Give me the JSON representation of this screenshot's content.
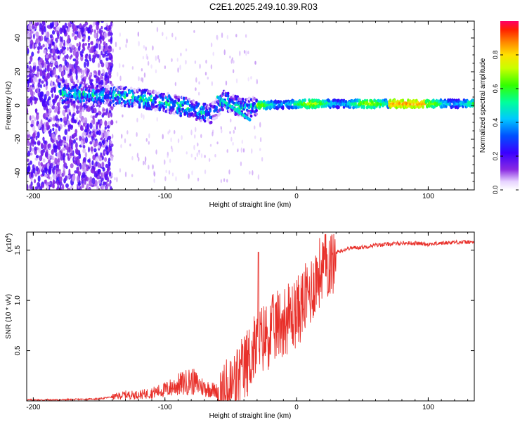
{
  "title": "C2E1.2025.249.10.39.R03",
  "colors": {
    "line": "#e8302a",
    "axis": "#000000"
  },
  "chart_data": [
    {
      "type": "heatmap",
      "xlabel": "Height of straight line (km)",
      "ylabel": "Frequency (Hz)",
      "xlim": [
        -205,
        135
      ],
      "ylim": [
        -50,
        50
      ],
      "x_tick_labels": [
        "-200",
        "-100",
        "0",
        "100"
      ],
      "x_ticks": [
        -200,
        -100,
        0,
        100
      ],
      "y_tick_labels": [
        "40",
        "20",
        "0",
        "-20",
        "-40"
      ],
      "y_ticks": [
        40,
        20,
        0,
        -20,
        -40
      ],
      "colorbar": {
        "label": "Normalized spectral amplitude",
        "range": [
          0,
          1
        ],
        "tick_labels": [
          "0.0",
          "0.2",
          "0.4",
          "0.6",
          "0.8"
        ],
        "ticks": [
          0.0,
          0.2,
          0.4,
          0.6,
          0.8
        ]
      },
      "ridge": [
        {
          "x": -175,
          "f": 7
        },
        {
          "x": -150,
          "f": 6
        },
        {
          "x": -125,
          "f": 5
        },
        {
          "x": -100,
          "f": 2
        },
        {
          "x": -80,
          "f": -2
        },
        {
          "x": -65,
          "f": -5
        },
        {
          "x": -55,
          "f": 3
        },
        {
          "x": -40,
          "f": -2
        },
        {
          "x": -30,
          "f": 0
        },
        {
          "x": 0,
          "f": 1
        },
        {
          "x": 50,
          "f": 1
        },
        {
          "x": 90,
          "f": 1
        },
        {
          "x": 130,
          "f": 1
        }
      ]
    },
    {
      "type": "line",
      "xlabel": "Height of straight line (km)",
      "ylabel": "SNR (10 * v/v)",
      "y_scale_label": "(x10",
      "y_scale_exponent": "4",
      "y_scale_suffix": ")",
      "xlim": [
        -205,
        135
      ],
      "ylim": [
        0,
        1.68
      ],
      "x_tick_labels": [
        "-200",
        "-100",
        "0",
        "100"
      ],
      "x_ticks": [
        -200,
        -100,
        0,
        100
      ],
      "y_tick_labels": [
        "1.5",
        "1.0",
        "0.5"
      ],
      "y_ticks": [
        1.5,
        1.0,
        0.5
      ],
      "series": [
        {
          "name": "SNR",
          "x": [
            -205,
            -180,
            -150,
            -140,
            -130,
            -120,
            -110,
            -100,
            -90,
            -80,
            -70,
            -60,
            -55,
            -50,
            -45,
            -40,
            -35,
            -30,
            -25,
            -20,
            -15,
            -10,
            -5,
            0,
            5,
            10,
            15,
            20,
            25,
            30,
            40,
            50,
            60,
            70,
            80,
            90,
            100,
            110,
            120,
            135
          ],
          "values": [
            0.01,
            0.01,
            0.02,
            0.04,
            0.06,
            0.06,
            0.08,
            0.11,
            0.16,
            0.2,
            0.13,
            0.1,
            0.12,
            0.18,
            0.28,
            0.38,
            0.52,
            0.62,
            0.7,
            0.75,
            0.82,
            0.88,
            0.9,
            0.95,
            1.05,
            1.15,
            1.3,
            1.4,
            1.46,
            1.48,
            1.52,
            1.53,
            1.55,
            1.56,
            1.57,
            1.57,
            1.56,
            1.57,
            1.58,
            1.58
          ]
        }
      ]
    }
  ]
}
